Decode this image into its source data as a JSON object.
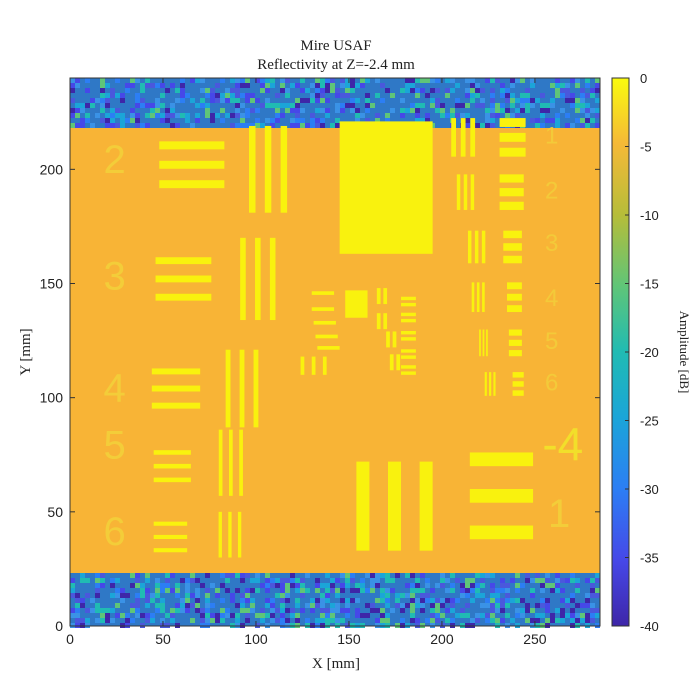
{
  "chart_data": {
    "type": "heatmap",
    "title": "Mire USAF",
    "subtitle": "Reflectivity at Z=-2.4 mm",
    "xlabel": "X [mm]",
    "ylabel": "Y [mm]",
    "xlim": [
      0,
      285
    ],
    "ylim": [
      0,
      240
    ],
    "xticks": [
      0,
      50,
      100,
      150,
      200,
      250
    ],
    "yticks": [
      0,
      50,
      100,
      150,
      200
    ],
    "colorbar": {
      "label": "Amplitude [dB]",
      "range": [
        -40,
        0
      ],
      "ticks": [
        0,
        -5,
        -10,
        -15,
        -20,
        -25,
        -30,
        -35,
        -40
      ],
      "colormap": "parula"
    },
    "regions": {
      "noise_bottom": [
        0,
        24
      ],
      "sample": [
        24,
        225
      ],
      "noise_top": [
        225,
        240
      ],
      "background_level_db": -6.5,
      "pattern_level_db": -1,
      "noise_level_db": [
        -40,
        -12
      ]
    },
    "pattern_labels": [
      {
        "text": "2",
        "x": 24,
        "y": 203
      },
      {
        "text": "3",
        "x": 24,
        "y": 152
      },
      {
        "text": "4",
        "x": 24,
        "y": 103
      },
      {
        "text": "5",
        "x": 24,
        "y": 78
      },
      {
        "text": "6",
        "x": 24,
        "y": 40
      },
      {
        "text": "-4",
        "x": 265,
        "y": 78
      },
      {
        "text": "1",
        "x": 263,
        "y": 48
      },
      {
        "text": "1",
        "x": 259,
        "y": 214
      },
      {
        "text": "2",
        "x": 259,
        "y": 190
      },
      {
        "text": "3",
        "x": 259,
        "y": 167
      },
      {
        "text": "4",
        "x": 259,
        "y": 143
      },
      {
        "text": "5",
        "x": 259,
        "y": 124
      },
      {
        "text": "6",
        "x": 259,
        "y": 106
      }
    ]
  }
}
